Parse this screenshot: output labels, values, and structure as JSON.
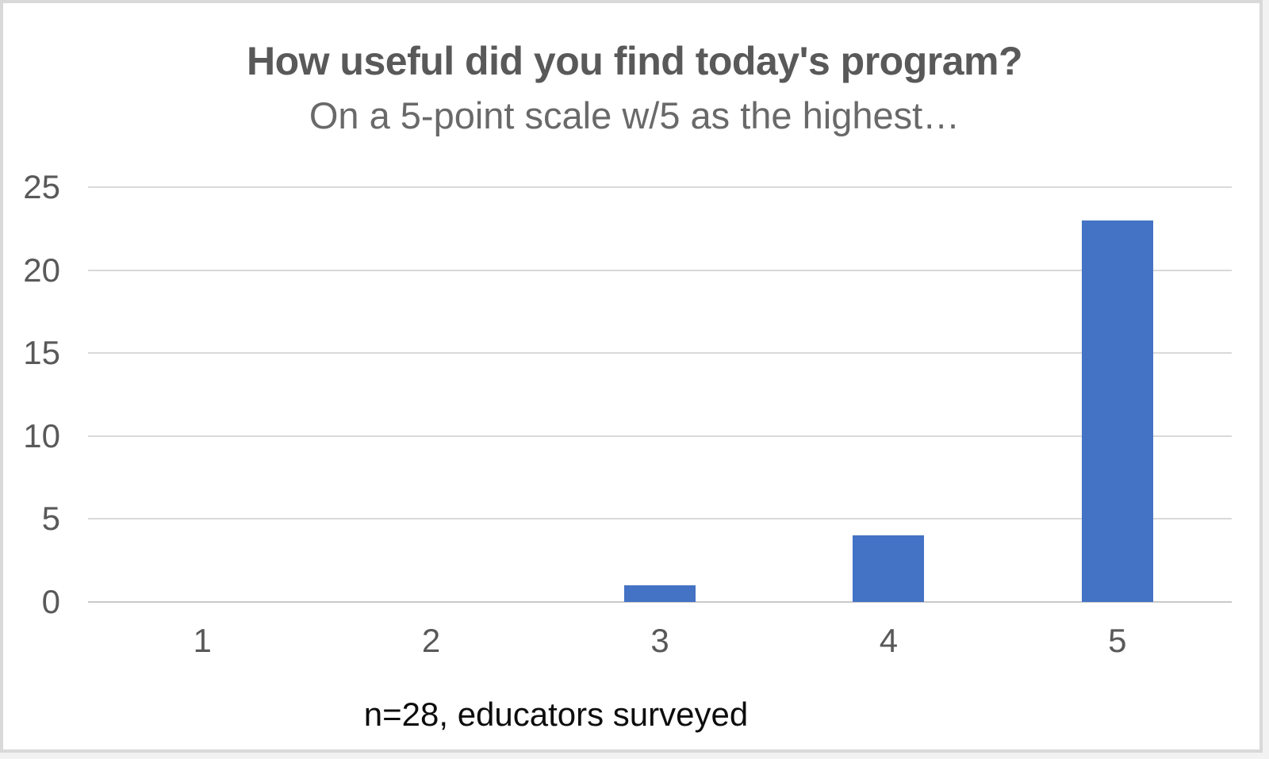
{
  "chart_data": {
    "type": "bar",
    "title": "How useful did you find today's program?",
    "subtitle": "On a 5-point scale w/5 as the highest…",
    "caption": "n=28, educators surveyed",
    "categories": [
      "1",
      "2",
      "3",
      "4",
      "5"
    ],
    "values": [
      0,
      0,
      1,
      4,
      23
    ],
    "xlabel": "",
    "ylabel": "",
    "ylim": [
      0,
      25
    ],
    "yticks": [
      0,
      5,
      10,
      15,
      20,
      25
    ],
    "grid": true,
    "legend": "none",
    "colors": {
      "bar": "#4472c4",
      "title": "#595959",
      "subtitle": "#696969",
      "axis_label": "#595959",
      "gridline": "#d9d9d9",
      "zero_axis_line": "#c9c9c9",
      "caption": "#0d0d0d",
      "frame_border": "#d9d9d9",
      "background": "#ffffff"
    }
  }
}
